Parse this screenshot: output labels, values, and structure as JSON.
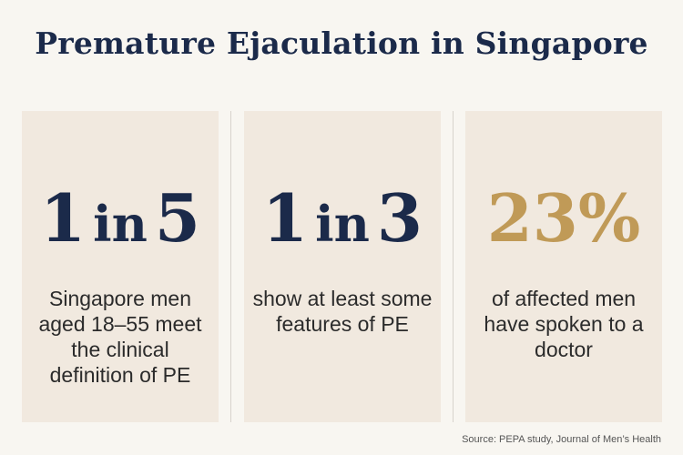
{
  "title": "Premature Ejaculation in Singapore",
  "stats": [
    {
      "number_a": "1",
      "connector": "in",
      "number_b": "5",
      "description": "Singapore men aged 18–55 meet the clinical definition of PE"
    },
    {
      "number_a": "1",
      "connector": "in",
      "number_b": "3",
      "description": "show at least some features of PE"
    },
    {
      "value": "23%",
      "description": "of affected men have spoken to a doctor"
    }
  ],
  "source": "Source: PEPA study, Journal of Men’s Health",
  "colors": {
    "background": "#f8f6f1",
    "card": "#f1e9df",
    "navy": "#1b2a4a",
    "gold": "#c09a57"
  }
}
